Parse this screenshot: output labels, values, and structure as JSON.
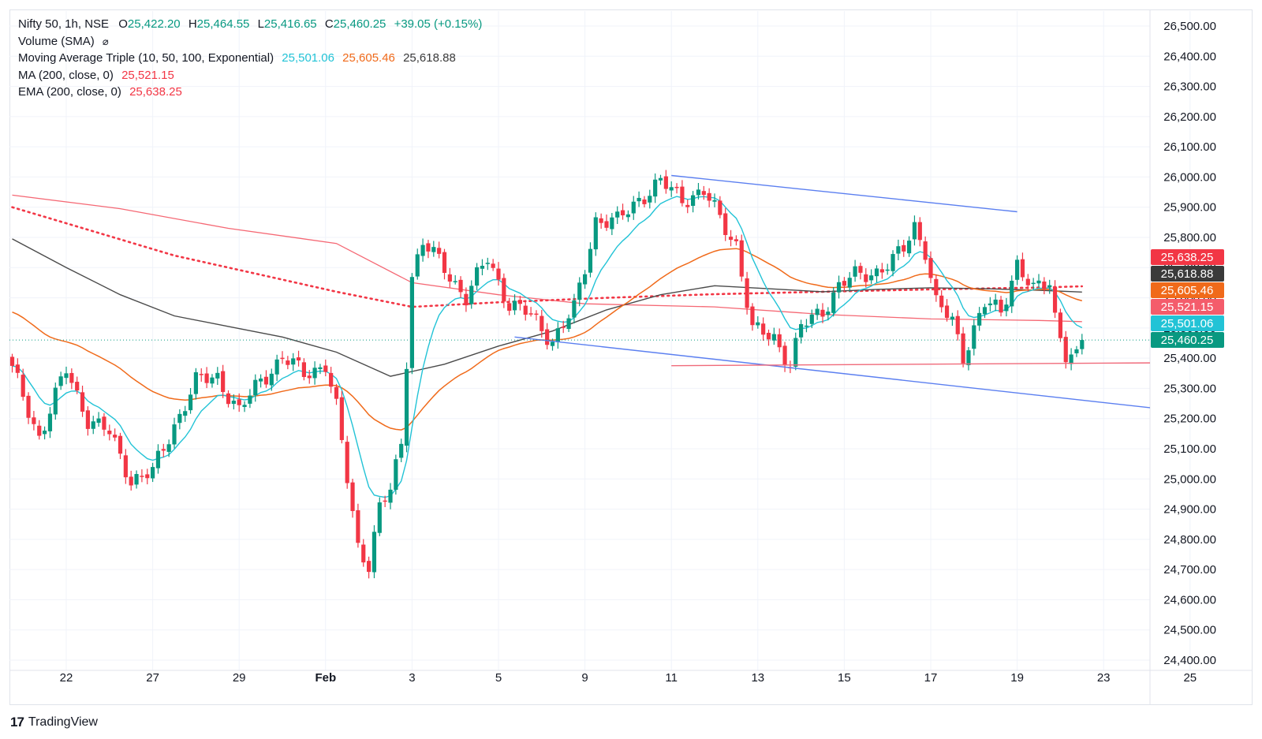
{
  "legend": {
    "symbol": "Nifty 50, 1h, NSE",
    "open_label": "O",
    "open": "25,422.20",
    "high_label": "H",
    "high": "25,464.55",
    "low_label": "L",
    "low": "25,416.65",
    "close_label": "C",
    "close": "25,460.25",
    "change": "+39.05 (+0.15%)",
    "volume": "Volume (SMA)",
    "volume_icon": "⌀",
    "mat": "Moving Average Triple (10, 50, 100, Exponential)",
    "mat_v1": "25,501.06",
    "mat_v2": "25,605.46",
    "mat_v3": "25,618.88",
    "ma": "MA (200, close, 0)",
    "ma_v": "25,521.15",
    "ema": "EMA (200, close, 0)",
    "ema_v": "25,638.25"
  },
  "colors": {
    "up": "#089981",
    "down": "#f23645",
    "ema10": "#22c3d6",
    "ema50": "#f06a1a",
    "ema100": "#4a4a4a",
    "ma200": "#f23645",
    "ema200": "#f23645",
    "trend": "#5b7ff0",
    "support": "#f06a7a",
    "grid": "#f0f3fa"
  },
  "brand": {
    "logo": "17",
    "name": "TradingView"
  },
  "chart_data": {
    "type": "candlestick",
    "y_ticks": [
      "26,500.00",
      "26,400.00",
      "26,300.00",
      "26,200.00",
      "26,100.00",
      "26,000.00",
      "25,900.00",
      "25,800.00",
      "25,700.00",
      "25,600.00",
      "25,500.00",
      "25,400.00",
      "25,300.00",
      "25,200.00",
      "25,100.00",
      "25,000.00",
      "24,900.00",
      "24,800.00",
      "24,700.00",
      "24,600.00",
      "24,500.00",
      "24,400.00"
    ],
    "y_range": [
      24400,
      26500
    ],
    "x_ticks": [
      {
        "label": "22",
        "i": 10
      },
      {
        "label": "27",
        "i": 26
      },
      {
        "label": "29",
        "i": 42
      },
      {
        "label": "Feb",
        "i": 58
      },
      {
        "label": "3",
        "i": 74
      },
      {
        "label": "5",
        "i": 90
      },
      {
        "label": "9",
        "i": 106
      },
      {
        "label": "11",
        "i": 122
      },
      {
        "label": "13",
        "i": 138
      },
      {
        "label": "15",
        "i": 154
      },
      {
        "label": "17",
        "i": 170
      },
      {
        "label": "19",
        "i": 186
      },
      {
        "label": "23",
        "i": 202
      },
      {
        "label": "25",
        "i": 218
      }
    ],
    "price_tags": [
      {
        "value": "25,638.25",
        "color": "#f23645",
        "y": 25638.25
      },
      {
        "value": "25,618.88",
        "color": "#3a3a3a",
        "y": 25618.88
      },
      {
        "value": "25,605.46",
        "color": "#f06a1a",
        "y": 25605.46
      },
      {
        "value": "25,521.15",
        "color": "#f45c6b",
        "y": 25521.15
      },
      {
        "value": "25,501.06",
        "color": "#22c3d6",
        "y": 25501.06
      },
      {
        "value": "25,460.25",
        "color": "#089981",
        "y": 25460.25
      }
    ],
    "last_close": 25460.25,
    "anchors": [
      [
        0,
        25360
      ],
      [
        5,
        25140
      ],
      [
        10,
        25360
      ],
      [
        14,
        25200
      ],
      [
        18,
        25150
      ],
      [
        22,
        25000
      ],
      [
        26,
        25020
      ],
      [
        30,
        25180
      ],
      [
        34,
        25320
      ],
      [
        38,
        25340
      ],
      [
        42,
        25220
      ],
      [
        46,
        25330
      ],
      [
        50,
        25400
      ],
      [
        54,
        25350
      ],
      [
        58,
        25380
      ],
      [
        60,
        25230
      ],
      [
        62,
        25000
      ],
      [
        64,
        24780
      ],
      [
        66,
        24720
      ],
      [
        68,
        24900
      ],
      [
        70,
        24960
      ],
      [
        72,
        25120
      ],
      [
        74,
        25680
      ],
      [
        76,
        25780
      ],
      [
        80,
        25700
      ],
      [
        84,
        25600
      ],
      [
        88,
        25730
      ],
      [
        92,
        25580
      ],
      [
        96,
        25540
      ],
      [
        100,
        25460
      ],
      [
        104,
        25560
      ],
      [
        106,
        25700
      ],
      [
        108,
        25860
      ],
      [
        112,
        25850
      ],
      [
        116,
        25930
      ],
      [
        120,
        25980
      ],
      [
        124,
        25930
      ],
      [
        128,
        25950
      ],
      [
        131,
        25860
      ],
      [
        134,
        25780
      ],
      [
        137,
        25490
      ],
      [
        141,
        25470
      ],
      [
        144,
        25380
      ],
      [
        146,
        25500
      ],
      [
        150,
        25560
      ],
      [
        153,
        25640
      ],
      [
        156,
        25670
      ],
      [
        160,
        25690
      ],
      [
        163,
        25720
      ],
      [
        165,
        25760
      ],
      [
        167,
        25840
      ],
      [
        169,
        25760
      ],
      [
        171,
        25580
      ],
      [
        174,
        25520
      ],
      [
        176,
        25410
      ],
      [
        178,
        25500
      ],
      [
        180,
        25580
      ],
      [
        183,
        25550
      ],
      [
        186,
        25720
      ],
      [
        189,
        25620
      ],
      [
        192,
        25650
      ],
      [
        193,
        25540
      ],
      [
        195,
        25420
      ],
      [
        197,
        25400
      ],
      [
        198,
        25460
      ]
    ],
    "ma200_line": [
      [
        0,
        25940
      ],
      [
        20,
        25895
      ],
      [
        40,
        25830
      ],
      [
        60,
        25780
      ],
      [
        74,
        25650
      ],
      [
        90,
        25610
      ],
      [
        106,
        25580
      ],
      [
        130,
        25570
      ],
      [
        150,
        25545
      ],
      [
        170,
        25530
      ],
      [
        190,
        25525
      ],
      [
        198,
        25521
      ]
    ],
    "ema200_line": [
      [
        0,
        25900
      ],
      [
        15,
        25820
      ],
      [
        30,
        25740
      ],
      [
        45,
        25680
      ],
      [
        60,
        25620
      ],
      [
        74,
        25570
      ],
      [
        90,
        25585
      ],
      [
        110,
        25600
      ],
      [
        130,
        25612
      ],
      [
        150,
        25620
      ],
      [
        170,
        25628
      ],
      [
        190,
        25634
      ],
      [
        198,
        25638
      ]
    ],
    "ema100_line": [
      [
        0,
        25795
      ],
      [
        10,
        25700
      ],
      [
        20,
        25610
      ],
      [
        30,
        25540
      ],
      [
        40,
        25505
      ],
      [
        50,
        25470
      ],
      [
        60,
        25420
      ],
      [
        70,
        25340
      ],
      [
        80,
        25380
      ],
      [
        90,
        25440
      ],
      [
        100,
        25490
      ],
      [
        110,
        25560
      ],
      [
        120,
        25610
      ],
      [
        130,
        25640
      ],
      [
        140,
        25630
      ],
      [
        150,
        25620
      ],
      [
        160,
        25628
      ],
      [
        170,
        25633
      ],
      [
        180,
        25630
      ],
      [
        190,
        25625
      ],
      [
        198,
        25619
      ]
    ],
    "trend_upper": [
      [
        122,
        26005
      ],
      [
        186,
        25885
      ]
    ],
    "trend_lower": [
      [
        93,
        25470
      ],
      [
        216,
        25225
      ]
    ],
    "support_line": [
      [
        122,
        25375
      ],
      [
        216,
        25385
      ]
    ]
  }
}
